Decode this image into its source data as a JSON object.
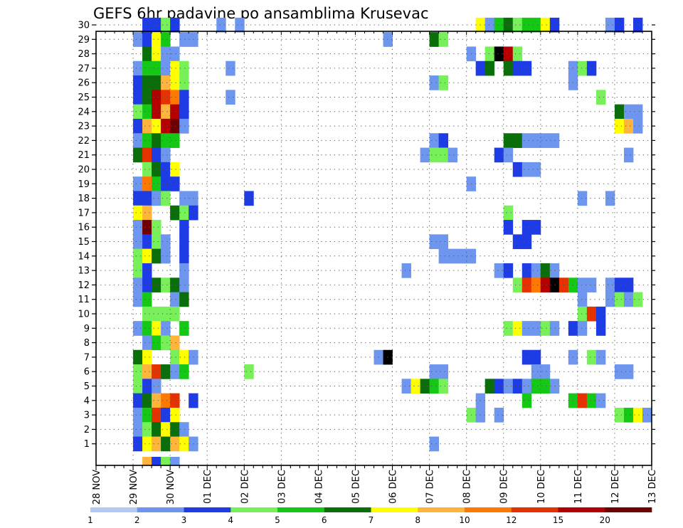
{
  "chart_data": {
    "type": "heatmap",
    "title": "GEFS 6hr padavine po ansamblima Krusevac",
    "xlabel": "",
    "ylabel": "",
    "x_tick_labels": [
      "28 NOV",
      "29 NOV",
      "30 NOV",
      "01 DEC",
      "02 DEC",
      "03 DEC",
      "04 DEC",
      "05 DEC",
      "06 DEC",
      "07 DEC",
      "08 DEC",
      "09 DEC",
      "10 DEC",
      "11 DEC",
      "12 DEC",
      "13 DEC"
    ],
    "y_tick_labels": [
      "1",
      "2",
      "3",
      "4",
      "5",
      "6",
      "7",
      "8",
      "9",
      "10",
      "11",
      "12",
      "13",
      "14",
      "15",
      "16",
      "17",
      "18",
      "19",
      "20",
      "21",
      "22",
      "23",
      "24",
      "25",
      "26",
      "27",
      "28",
      "29",
      "30"
    ],
    "x_units": "6-hour steps from 28 NOV 00Z",
    "grid": true,
    "colorbar": {
      "levels": [
        "1",
        "2",
        "3",
        "4",
        "5",
        "6",
        "7",
        "8",
        "10",
        "12",
        "15",
        "20"
      ],
      "colors": [
        "#b4c8f5",
        "#6e96ee",
        "#1e3ce6",
        "#78f05a",
        "#16c816",
        "#0a6e0a",
        "#ffff00",
        "#ffb43c",
        "#ff7800",
        "#e63200",
        "#b40000",
        "#6e0000"
      ]
    },
    "cells": [
      [
        30,
        5,
        2
      ],
      [
        30,
        6,
        2
      ],
      [
        30,
        7,
        3
      ],
      [
        30,
        8,
        2
      ],
      [
        30,
        13,
        1
      ],
      [
        30,
        15,
        1
      ],
      [
        30,
        41,
        6
      ],
      [
        30,
        42,
        1
      ],
      [
        30,
        43,
        4
      ],
      [
        30,
        44,
        5
      ],
      [
        30,
        45,
        3
      ],
      [
        30,
        46,
        4
      ],
      [
        30,
        47,
        4
      ],
      [
        30,
        48,
        6
      ],
      [
        30,
        49,
        2
      ],
      [
        30,
        55,
        1
      ],
      [
        30,
        56,
        2
      ],
      [
        30,
        58,
        2
      ],
      [
        29,
        4,
        1
      ],
      [
        29,
        5,
        2
      ],
      [
        29,
        6,
        6
      ],
      [
        29,
        7,
        4
      ],
      [
        29,
        9,
        1
      ],
      [
        29,
        10,
        1
      ],
      [
        29,
        31,
        1
      ],
      [
        29,
        36,
        5
      ],
      [
        29,
        37,
        3
      ],
      [
        28,
        5,
        5
      ],
      [
        28,
        6,
        6
      ],
      [
        28,
        7,
        1
      ],
      [
        28,
        8,
        1
      ],
      [
        28,
        40,
        1
      ],
      [
        28,
        42,
        3
      ],
      [
        28,
        43,
        12
      ],
      [
        28,
        44,
        10
      ],
      [
        28,
        45,
        3
      ],
      [
        27,
        4,
        1
      ],
      [
        27,
        5,
        4
      ],
      [
        27,
        6,
        4
      ],
      [
        27,
        7,
        1
      ],
      [
        27,
        8,
        6
      ],
      [
        27,
        9,
        3
      ],
      [
        27,
        14,
        1
      ],
      [
        27,
        41,
        2
      ],
      [
        27,
        42,
        5
      ],
      [
        27,
        44,
        5
      ],
      [
        27,
        45,
        2
      ],
      [
        27,
        46,
        2
      ],
      [
        27,
        51,
        1
      ],
      [
        27,
        52,
        3
      ],
      [
        27,
        53,
        2
      ],
      [
        26,
        4,
        2
      ],
      [
        26,
        5,
        5
      ],
      [
        26,
        6,
        5
      ],
      [
        26,
        7,
        7
      ],
      [
        26,
        8,
        6
      ],
      [
        26,
        9,
        3
      ],
      [
        26,
        36,
        1
      ],
      [
        26,
        37,
        3
      ],
      [
        26,
        51,
        1
      ],
      [
        25,
        4,
        2
      ],
      [
        25,
        5,
        5
      ],
      [
        25,
        6,
        10
      ],
      [
        25,
        7,
        9
      ],
      [
        25,
        8,
        8
      ],
      [
        25,
        9,
        2
      ],
      [
        25,
        14,
        1
      ],
      [
        25,
        54,
        3
      ],
      [
        24,
        4,
        3
      ],
      [
        24,
        5,
        4
      ],
      [
        24,
        6,
        10
      ],
      [
        24,
        7,
        7
      ],
      [
        24,
        8,
        10
      ],
      [
        24,
        9,
        2
      ],
      [
        24,
        56,
        5
      ],
      [
        24,
        57,
        1
      ],
      [
        24,
        58,
        1
      ],
      [
        23,
        4,
        2
      ],
      [
        23,
        5,
        7
      ],
      [
        23,
        6,
        6
      ],
      [
        23,
        7,
        10
      ],
      [
        23,
        8,
        11
      ],
      [
        23,
        9,
        1
      ],
      [
        23,
        56,
        6
      ],
      [
        23,
        57,
        7
      ],
      [
        23,
        58,
        1
      ],
      [
        22,
        4,
        1
      ],
      [
        22,
        5,
        4
      ],
      [
        22,
        6,
        5
      ],
      [
        22,
        7,
        4
      ],
      [
        22,
        8,
        4
      ],
      [
        22,
        36,
        1
      ],
      [
        22,
        37,
        2
      ],
      [
        22,
        44,
        5
      ],
      [
        22,
        45,
        5
      ],
      [
        22,
        46,
        1
      ],
      [
        22,
        47,
        1
      ],
      [
        22,
        48,
        1
      ],
      [
        22,
        49,
        1
      ],
      [
        21,
        4,
        5
      ],
      [
        21,
        5,
        9
      ],
      [
        21,
        6,
        2
      ],
      [
        21,
        7,
        1
      ],
      [
        21,
        35,
        1
      ],
      [
        21,
        36,
        3
      ],
      [
        21,
        37,
        3
      ],
      [
        21,
        38,
        1
      ],
      [
        21,
        43,
        2
      ],
      [
        21,
        44,
        1
      ],
      [
        21,
        57,
        1
      ],
      [
        20,
        5,
        3
      ],
      [
        20,
        6,
        5
      ],
      [
        20,
        7,
        2
      ],
      [
        20,
        8,
        6
      ],
      [
        20,
        45,
        2
      ],
      [
        20,
        46,
        1
      ],
      [
        20,
        47,
        1
      ],
      [
        19,
        4,
        1
      ],
      [
        19,
        5,
        8
      ],
      [
        19,
        6,
        4
      ],
      [
        19,
        7,
        2
      ],
      [
        19,
        8,
        2
      ],
      [
        19,
        40,
        1
      ],
      [
        18,
        4,
        2
      ],
      [
        18,
        5,
        2
      ],
      [
        18,
        6,
        1
      ],
      [
        18,
        7,
        3
      ],
      [
        18,
        9,
        1
      ],
      [
        18,
        10,
        1
      ],
      [
        18,
        16,
        2
      ],
      [
        18,
        52,
        1
      ],
      [
        18,
        55,
        1
      ],
      [
        17,
        4,
        6
      ],
      [
        17,
        5,
        7
      ],
      [
        17,
        8,
        5
      ],
      [
        17,
        9,
        3
      ],
      [
        17,
        10,
        2
      ],
      [
        17,
        44,
        3
      ],
      [
        16,
        4,
        1
      ],
      [
        16,
        5,
        11
      ],
      [
        16,
        6,
        3
      ],
      [
        16,
        9,
        2
      ],
      [
        16,
        44,
        2
      ],
      [
        16,
        46,
        2
      ],
      [
        16,
        47,
        2
      ],
      [
        15,
        4,
        1
      ],
      [
        15,
        5,
        2
      ],
      [
        15,
        6,
        3
      ],
      [
        15,
        7,
        1
      ],
      [
        15,
        9,
        2
      ],
      [
        15,
        36,
        1
      ],
      [
        15,
        37,
        1
      ],
      [
        15,
        45,
        2
      ],
      [
        15,
        46,
        2
      ],
      [
        14,
        4,
        3
      ],
      [
        14,
        5,
        6
      ],
      [
        14,
        6,
        5
      ],
      [
        14,
        7,
        1
      ],
      [
        14,
        9,
        2
      ],
      [
        14,
        37,
        1
      ],
      [
        14,
        38,
        1
      ],
      [
        14,
        39,
        1
      ],
      [
        14,
        40,
        1
      ],
      [
        13,
        4,
        3
      ],
      [
        13,
        5,
        2
      ],
      [
        13,
        9,
        1
      ],
      [
        13,
        33,
        1
      ],
      [
        13,
        43,
        1
      ],
      [
        13,
        44,
        2
      ],
      [
        13,
        46,
        2
      ],
      [
        13,
        47,
        1
      ],
      [
        13,
        48,
        5
      ],
      [
        13,
        49,
        1
      ],
      [
        12,
        4,
        1
      ],
      [
        12,
        5,
        2
      ],
      [
        12,
        6,
        5
      ],
      [
        12,
        7,
        3
      ],
      [
        12,
        8,
        5
      ],
      [
        12,
        9,
        1
      ],
      [
        12,
        45,
        3
      ],
      [
        12,
        46,
        9
      ],
      [
        12,
        47,
        8
      ],
      [
        12,
        48,
        10
      ],
      [
        12,
        49,
        12
      ],
      [
        12,
        50,
        9
      ],
      [
        12,
        51,
        4
      ],
      [
        12,
        52,
        1
      ],
      [
        12,
        53,
        1
      ],
      [
        12,
        55,
        1
      ],
      [
        12,
        56,
        2
      ],
      [
        12,
        57,
        2
      ],
      [
        11,
        4,
        1
      ],
      [
        11,
        5,
        4
      ],
      [
        11,
        8,
        1
      ],
      [
        11,
        9,
        5
      ],
      [
        11,
        52,
        1
      ],
      [
        11,
        55,
        1
      ],
      [
        11,
        56,
        3
      ],
      [
        11,
        57,
        1
      ],
      [
        11,
        58,
        3
      ],
      [
        10,
        5,
        3
      ],
      [
        10,
        6,
        3
      ],
      [
        10,
        7,
        3
      ],
      [
        10,
        8,
        3
      ],
      [
        10,
        52,
        3
      ],
      [
        10,
        53,
        9
      ],
      [
        10,
        54,
        2
      ],
      [
        9,
        4,
        1
      ],
      [
        9,
        5,
        4
      ],
      [
        9,
        6,
        6
      ],
      [
        9,
        7,
        1
      ],
      [
        9,
        9,
        4
      ],
      [
        9,
        44,
        3
      ],
      [
        9,
        45,
        6
      ],
      [
        9,
        46,
        1
      ],
      [
        9,
        47,
        1
      ],
      [
        9,
        48,
        3
      ],
      [
        9,
        49,
        1
      ],
      [
        9,
        51,
        2
      ],
      [
        9,
        52,
        1
      ],
      [
        9,
        54,
        2
      ],
      [
        8,
        5,
        1
      ],
      [
        8,
        6,
        4
      ],
      [
        8,
        7,
        3
      ],
      [
        8,
        8,
        7
      ],
      [
        7,
        4,
        5
      ],
      [
        7,
        5,
        6
      ],
      [
        7,
        8,
        3
      ],
      [
        7,
        9,
        6
      ],
      [
        7,
        10,
        1
      ],
      [
        7,
        30,
        1
      ],
      [
        7,
        31,
        12
      ],
      [
        7,
        46,
        2
      ],
      [
        7,
        47,
        2
      ],
      [
        7,
        51,
        1
      ],
      [
        7,
        53,
        3
      ],
      [
        7,
        54,
        1
      ],
      [
        6,
        4,
        3
      ],
      [
        6,
        5,
        7
      ],
      [
        6,
        6,
        9
      ],
      [
        6,
        7,
        5
      ],
      [
        6,
        8,
        1
      ],
      [
        6,
        9,
        4
      ],
      [
        6,
        16,
        3
      ],
      [
        6,
        36,
        1
      ],
      [
        6,
        37,
        1
      ],
      [
        6,
        47,
        1
      ],
      [
        6,
        48,
        1
      ],
      [
        6,
        56,
        1
      ],
      [
        6,
        57,
        1
      ],
      [
        5,
        4,
        3
      ],
      [
        5,
        5,
        2
      ],
      [
        5,
        6,
        1
      ],
      [
        5,
        33,
        1
      ],
      [
        5,
        34,
        6
      ],
      [
        5,
        35,
        5
      ],
      [
        5,
        36,
        4
      ],
      [
        5,
        37,
        3
      ],
      [
        5,
        42,
        5
      ],
      [
        5,
        43,
        2
      ],
      [
        5,
        44,
        1
      ],
      [
        5,
        45,
        2
      ],
      [
        5,
        46,
        1
      ],
      [
        5,
        47,
        4
      ],
      [
        5,
        48,
        4
      ],
      [
        5,
        49,
        1
      ],
      [
        4,
        4,
        2
      ],
      [
        4,
        5,
        5
      ],
      [
        4,
        6,
        7
      ],
      [
        4,
        7,
        8
      ],
      [
        4,
        8,
        9
      ],
      [
        4,
        10,
        2
      ],
      [
        4,
        41,
        1
      ],
      [
        4,
        46,
        4
      ],
      [
        4,
        51,
        4
      ],
      [
        4,
        52,
        9
      ],
      [
        4,
        53,
        4
      ],
      [
        4,
        54,
        1
      ],
      [
        3,
        4,
        1
      ],
      [
        3,
        5,
        4
      ],
      [
        3,
        6,
        9
      ],
      [
        3,
        7,
        2
      ],
      [
        3,
        8,
        6
      ],
      [
        3,
        40,
        3
      ],
      [
        3,
        41,
        1
      ],
      [
        3,
        43,
        1
      ],
      [
        3,
        56,
        3
      ],
      [
        3,
        57,
        4
      ],
      [
        3,
        58,
        6
      ],
      [
        3,
        59,
        1
      ],
      [
        2,
        4,
        1
      ],
      [
        2,
        5,
        3
      ],
      [
        2,
        6,
        5
      ],
      [
        2,
        7,
        6
      ],
      [
        2,
        8,
        5
      ],
      [
        2,
        9,
        1
      ],
      [
        1,
        4,
        2
      ],
      [
        1,
        5,
        6
      ],
      [
        1,
        6,
        7
      ],
      [
        1,
        7,
        5
      ],
      [
        1,
        8,
        7
      ],
      [
        1,
        9,
        6
      ],
      [
        1,
        10,
        1
      ],
      [
        1,
        36,
        1
      ],
      [
        0,
        5,
        7
      ],
      [
        0,
        6,
        2
      ],
      [
        0,
        7,
        3
      ],
      [
        0,
        8,
        1
      ]
    ]
  }
}
